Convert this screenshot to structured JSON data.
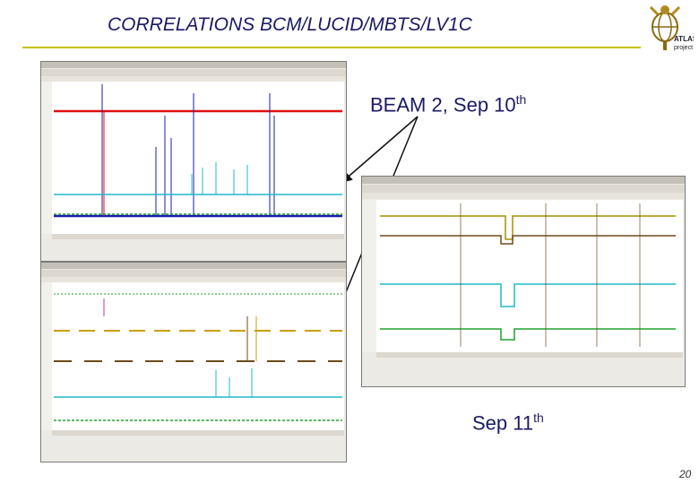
{
  "slide": {
    "title": "CORRELATIONS BCM/LUCID/MBTS/LV1C",
    "beam_label": "BEAM 2, Sep 10",
    "beam_sup": "th",
    "sep11_label": "Sep 11",
    "sep11_sup": "th",
    "page_number": "20"
  },
  "logo": {
    "icon": "atlas-logo-icon",
    "text_line1": "ATLAS",
    "text_line2": "project"
  },
  "colors": {
    "title": "#1a1a66",
    "rule": "#c8c100",
    "red": "#e01010",
    "blue": "#1a1ab0",
    "cyan": "#20b8c8",
    "green": "#20a030",
    "magenta": "#c030c0",
    "gold": "#c8a000",
    "brown": "#6b4a1a",
    "olive": "#a09000"
  }
}
